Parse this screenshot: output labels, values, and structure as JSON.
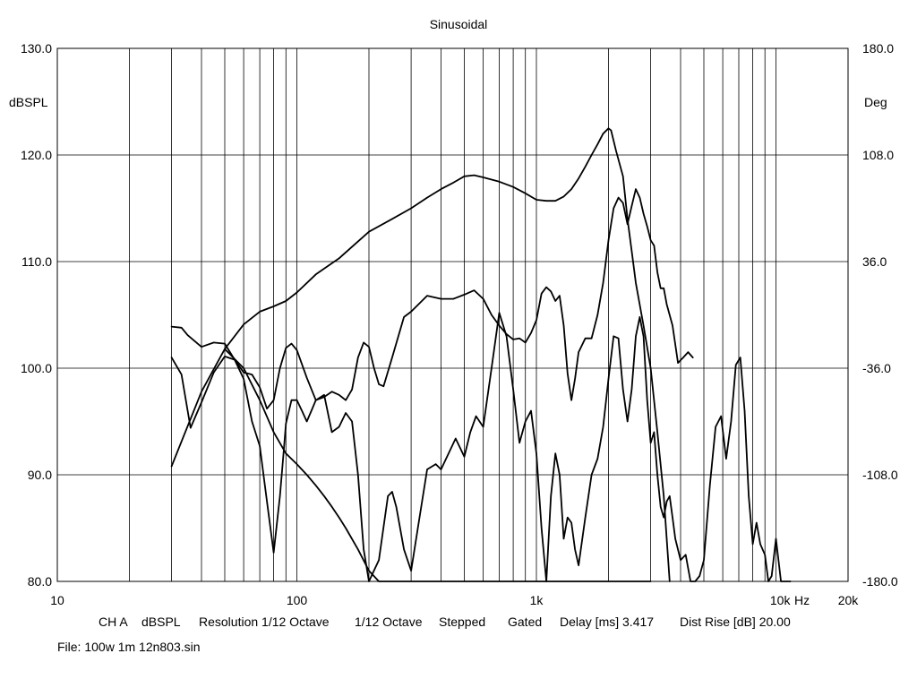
{
  "chart_data": {
    "type": "line",
    "title": "Sinusoidal",
    "ylabel_left": "dBSPL",
    "ylabel_right": "Deg",
    "xlabel": "Hz",
    "x_scale": "log",
    "xlim": [
      10,
      20000
    ],
    "ylim": [
      80,
      130
    ],
    "ylim_right": [
      -180,
      180
    ],
    "grid": true,
    "x_tick_labels": [
      {
        "value": 10,
        "label": "10"
      },
      {
        "value": 100,
        "label": "100"
      },
      {
        "value": 1000,
        "label": "1k"
      },
      {
        "value": 10000,
        "label": "10k"
      },
      {
        "value": 20000,
        "label": "20k"
      }
    ],
    "y_tick_labels": [
      "80.0",
      "90.0",
      "100.0",
      "110.0",
      "120.0",
      "130.0"
    ],
    "y_right_tick_labels": [
      "-180.0",
      "-108.0",
      "-36.0",
      "36.0",
      "108.0",
      "180.0"
    ],
    "series": [
      {
        "x": [
          30,
          40,
          50,
          60,
          70,
          80,
          90,
          100,
          120,
          150,
          200,
          250,
          300,
          350,
          400,
          450,
          500,
          550,
          600,
          700,
          800,
          900,
          1000,
          1100,
          1200,
          1300,
          1400,
          1500,
          1600,
          1700,
          1800,
          1900,
          2000,
          2050,
          2150,
          2300,
          2400,
          2500,
          2600,
          2800,
          3000,
          3200,
          3400,
          3600
        ],
        "y": [
          90.8,
          97.8,
          101.8,
          104.1,
          105.3,
          105.8,
          106.3,
          107.1,
          108.8,
          110.3,
          112.8,
          114.0,
          115.0,
          116.0,
          116.8,
          117.4,
          118.0,
          118.1,
          117.9,
          117.5,
          117.0,
          116.4,
          115.8,
          115.7,
          115.7,
          116.1,
          116.8,
          117.8,
          118.9,
          120.0,
          121.0,
          122.0,
          122.5,
          122.3,
          120.4,
          118.0,
          114.0,
          111.0,
          108.0,
          104.0,
          100.0,
          94.0,
          88.0,
          80.0
        ]
      },
      {
        "x": [
          30,
          33,
          35,
          40,
          45,
          50,
          55,
          60,
          65,
          70,
          75,
          80,
          85,
          90,
          95,
          100,
          110,
          120,
          130,
          140,
          150,
          160,
          170,
          180,
          190,
          200,
          210,
          220,
          230,
          250,
          280,
          300,
          350,
          400,
          450,
          500,
          550,
          600,
          650,
          700,
          750,
          800,
          850,
          900,
          950,
          1000,
          1050,
          1100,
          1150,
          1200,
          1250,
          1300,
          1350,
          1400,
          1450,
          1500,
          1600,
          1700,
          1800,
          1900,
          2000,
          2100,
          2200,
          2300,
          2400,
          2500,
          2600,
          2700,
          2800,
          2900,
          3000,
          3100,
          3200,
          3300,
          3400,
          3500,
          3700,
          3900,
          4100,
          4300,
          4500
        ],
        "y": [
          103.9,
          103.8,
          103.1,
          102.0,
          102.4,
          102.3,
          100.8,
          99.6,
          99.4,
          98.2,
          96.2,
          97.0,
          100.0,
          101.9,
          102.3,
          101.7,
          99.1,
          97.0,
          97.3,
          97.8,
          97.5,
          97.0,
          98.0,
          101.0,
          102.4,
          102.0,
          100.0,
          98.5,
          98.3,
          101.0,
          104.8,
          105.3,
          106.8,
          106.5,
          106.5,
          106.9,
          107.3,
          106.5,
          105.0,
          104.0,
          103.2,
          102.7,
          102.8,
          102.4,
          103.3,
          104.5,
          107.0,
          107.6,
          107.2,
          106.3,
          106.8,
          104.0,
          99.5,
          97.0,
          99.0,
          101.5,
          102.8,
          102.8,
          105.0,
          108.0,
          112.0,
          115.0,
          116.0,
          115.5,
          113.5,
          115.2,
          116.8,
          116.0,
          114.5,
          113.3,
          112.0,
          111.5,
          109.0,
          107.5,
          107.5,
          106.0,
          104.0,
          100.5,
          101.0,
          101.5,
          101.0
        ]
      },
      {
        "x": [
          30,
          33,
          36,
          40,
          45,
          50,
          55,
          60,
          65,
          70,
          75,
          80,
          85,
          88,
          90,
          95,
          100,
          105,
          110,
          115,
          120,
          130,
          140,
          150,
          160,
          170,
          180,
          190,
          200,
          220,
          240,
          250,
          260,
          280,
          300,
          320,
          350,
          380,
          400,
          430,
          460,
          500,
          530,
          560,
          600,
          650,
          700,
          750,
          800,
          850,
          900,
          950,
          1000,
          1050,
          1100,
          1150,
          1200,
          1250,
          1300,
          1350,
          1400,
          1450,
          1500,
          1600,
          1700,
          1800,
          1900,
          2000,
          2100,
          2200,
          2300,
          2400,
          2500,
          2600,
          2700,
          2800,
          2900,
          3000,
          3100,
          3200,
          3300,
          3400,
          3500,
          3600,
          3700,
          3800,
          4000,
          4200,
          4400,
          4600,
          4800,
          5000,
          5300,
          5600,
          5900,
          6200,
          6500,
          6800,
          7100,
          7400,
          7700,
          8000,
          8300,
          8600,
          9000,
          9300,
          9600,
          10000,
          10500,
          11000,
          11500
        ],
        "y": [
          101.0,
          99.4,
          94.4,
          96.8,
          99.6,
          101.1,
          100.8,
          99.0,
          95.0,
          92.7,
          87.5,
          82.7,
          88.0,
          92.0,
          94.8,
          97.0,
          97.0,
          96.0,
          95.0,
          96.0,
          97.0,
          97.5,
          94.0,
          94.5,
          95.8,
          95.0,
          90.0,
          83.0,
          80.0,
          82.0,
          88.0,
          88.4,
          87.0,
          83.0,
          81.0,
          85.0,
          90.5,
          91.0,
          90.5,
          92.0,
          93.4,
          91.7,
          94.0,
          95.5,
          94.5,
          100.0,
          105.2,
          103.0,
          98.0,
          93.0,
          95.0,
          96.0,
          92.0,
          85.0,
          80.0,
          88.0,
          92.0,
          90.0,
          84.0,
          86.0,
          85.5,
          83.0,
          81.5,
          86.0,
          90.0,
          91.5,
          94.5,
          99.0,
          103.0,
          102.8,
          98.0,
          95.0,
          98.0,
          103.0,
          104.8,
          103.0,
          97.0,
          93.0,
          94.0,
          90.0,
          87.0,
          86.0,
          87.5,
          88.0,
          86.0,
          84.0,
          82.0,
          82.5,
          80.0,
          80.0,
          80.5,
          82.0,
          89.0,
          94.5,
          95.5,
          91.5,
          95.0,
          100.3,
          101.0,
          96.0,
          88.0,
          83.5,
          85.5,
          83.5,
          82.5,
          80.0,
          80.5,
          84.0,
          80.0,
          80.0,
          80.0
        ]
      },
      {
        "x": [
          50,
          60,
          70,
          80,
          90,
          100,
          110,
          120,
          130,
          140,
          150,
          160,
          180,
          200,
          220,
          250,
          300,
          350,
          400,
          450,
          500,
          550,
          600,
          650,
          700,
          750,
          800,
          850,
          900,
          950,
          1000,
          1100,
          1200,
          1300,
          1400,
          1500,
          1600,
          1700,
          1800,
          1900,
          2000,
          2100,
          2200,
          2300,
          2400,
          2500,
          2600,
          2700,
          2800,
          2900,
          3000
        ],
        "y": [
          101.8,
          100.0,
          97.0,
          94.0,
          92.0,
          91.0,
          90.0,
          89.0,
          88.0,
          87.0,
          86.0,
          85.0,
          83.0,
          81.0,
          80.0,
          80.0,
          80.0,
          80.0,
          80.0,
          80.0,
          80.0,
          80.0,
          80.0,
          80.0,
          80.0,
          80.0,
          80.0,
          80.0,
          80.0,
          80.0,
          80.0,
          80.0,
          80.0,
          80.0,
          80.0,
          80.0,
          80.0,
          80.0,
          80.0,
          80.0,
          80.0,
          80.0,
          80.0,
          80.0,
          80.0,
          80.0,
          80.0,
          80.0,
          80.0,
          80.0,
          80.0
        ]
      }
    ]
  },
  "footer": {
    "channel": "CH A",
    "unit": "dBSPL",
    "resolution_label": "Resolution 1/12 Octave",
    "octave": "1/12 Octave",
    "mode": "Stepped",
    "gate": "Gated",
    "delay": "Delay [ms] 3.417",
    "dist_rise": "Dist Rise [dB] 20.00",
    "file": "File: 100w 1m 12n803.sin"
  }
}
